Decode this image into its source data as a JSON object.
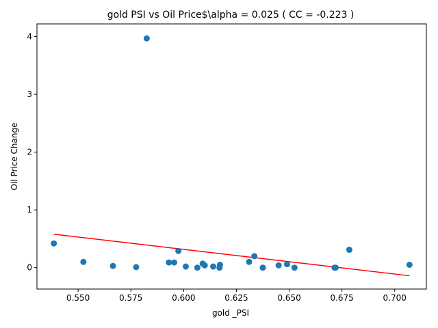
{
  "chart_data": {
    "type": "scatter",
    "title": "gold  PSI vs Oil Price$\\alpha = 0.025 ( CC = -0.223 )",
    "xlabel": "gold _PSI",
    "ylabel": "Oil Price Change",
    "xlim": [
      0.5305,
      0.715
    ],
    "ylim": [
      -0.37,
      4.22
    ],
    "xticks": [
      0.55,
      0.575,
      0.6,
      0.625,
      0.65,
      0.675,
      0.7
    ],
    "xtick_labels": [
      "0.550",
      "0.575",
      "0.600",
      "0.625",
      "0.650",
      "0.675",
      "0.700"
    ],
    "yticks": [
      0,
      1,
      2,
      3,
      4
    ],
    "ytick_labels": [
      "0",
      "1",
      "2",
      "3",
      "4"
    ],
    "grid": false,
    "legend": "none",
    "colors": {
      "points": "#1f77b4",
      "fit_line": "#ff0000",
      "axes": "#000000"
    },
    "points": [
      {
        "x": 0.5385,
        "y": 0.42
      },
      {
        "x": 0.5525,
        "y": 0.1
      },
      {
        "x": 0.5665,
        "y": 0.03
      },
      {
        "x": 0.5775,
        "y": 0.01
      },
      {
        "x": 0.5825,
        "y": 3.97
      },
      {
        "x": 0.593,
        "y": 0.09
      },
      {
        "x": 0.5955,
        "y": 0.09
      },
      {
        "x": 0.5975,
        "y": 0.29
      },
      {
        "x": 0.601,
        "y": 0.02
      },
      {
        "x": 0.6065,
        "y": 0.0
      },
      {
        "x": 0.609,
        "y": 0.07
      },
      {
        "x": 0.61,
        "y": 0.04
      },
      {
        "x": 0.614,
        "y": 0.02
      },
      {
        "x": 0.617,
        "y": 0.0
      },
      {
        "x": 0.6172,
        "y": 0.05
      },
      {
        "x": 0.631,
        "y": 0.1
      },
      {
        "x": 0.6335,
        "y": 0.2
      },
      {
        "x": 0.6375,
        "y": 0.0
      },
      {
        "x": 0.645,
        "y": 0.04
      },
      {
        "x": 0.649,
        "y": 0.06
      },
      {
        "x": 0.6525,
        "y": 0.0
      },
      {
        "x": 0.6715,
        "y": 0.0
      },
      {
        "x": 0.672,
        "y": 0.0
      },
      {
        "x": 0.6785,
        "y": 0.31
      },
      {
        "x": 0.707,
        "y": 0.05
      }
    ],
    "fit_line": {
      "x": [
        0.5385,
        0.707
      ],
      "y": [
        0.58,
        -0.14
      ]
    }
  }
}
